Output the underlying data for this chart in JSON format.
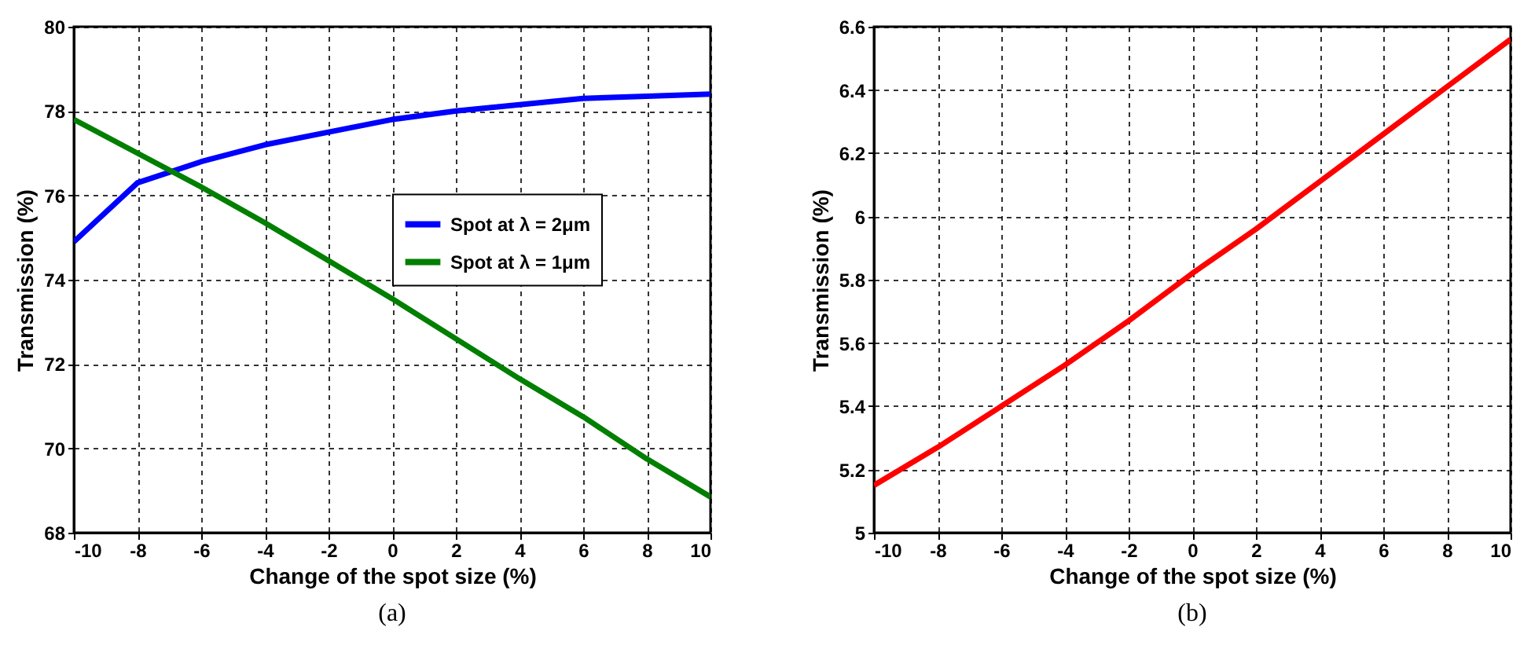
{
  "chart_data": [
    {
      "type": "line",
      "xlabel": "Change of the spot size (%)",
      "ylabel": "Transmission (%)",
      "annotations": [
        "(a)"
      ],
      "x": [
        -10,
        -8,
        -6,
        -4,
        -2,
        0,
        2,
        4,
        6,
        8,
        10
      ],
      "series": [
        {
          "name": "Spot at λ = 2μm",
          "color": "#0000ff",
          "values": [
            74.9,
            76.3,
            76.8,
            77.2,
            77.5,
            77.8,
            78.0,
            78.15,
            78.3,
            78.35,
            78.4
          ]
        },
        {
          "name": "Spot at λ = 1μm",
          "color": "#007f00",
          "values": [
            77.8,
            77.0,
            76.2,
            75.35,
            74.45,
            73.55,
            72.6,
            71.65,
            70.75,
            69.75,
            68.85
          ]
        }
      ],
      "xlim": [
        -10,
        10
      ],
      "xticks": [
        -10,
        -8,
        -6,
        -4,
        -2,
        0,
        2,
        4,
        6,
        8,
        10
      ],
      "ylim": [
        68,
        80
      ],
      "yticks": [
        68,
        70,
        72,
        74,
        76,
        78,
        80
      ],
      "grid": true,
      "legend": "right",
      "marker": "none",
      "line_style": "solid"
    },
    {
      "type": "line",
      "xlabel": "Change of the spot size (%)",
      "ylabel": "Transmission (%)",
      "annotations": [
        "(b)"
      ],
      "x": [
        -10,
        -8,
        -6,
        -4,
        -2,
        0,
        2,
        4,
        6,
        8,
        10
      ],
      "series": [
        {
          "color": "#ff0000",
          "values": [
            5.15,
            5.27,
            5.4,
            5.53,
            5.67,
            5.82,
            5.96,
            6.11,
            6.26,
            6.41,
            6.56
          ]
        }
      ],
      "xlim": [
        -10,
        10
      ],
      "xticks": [
        -10,
        -8,
        -6,
        -4,
        -2,
        0,
        2,
        4,
        6,
        8,
        10
      ],
      "ylim": [
        5,
        6.6
      ],
      "yticks": [
        5,
        5.2,
        5.4,
        5.6,
        5.8,
        6,
        6.2,
        6.4,
        6.6
      ],
      "grid": true,
      "legend": false,
      "marker": "none",
      "line_style": "solid"
    }
  ]
}
